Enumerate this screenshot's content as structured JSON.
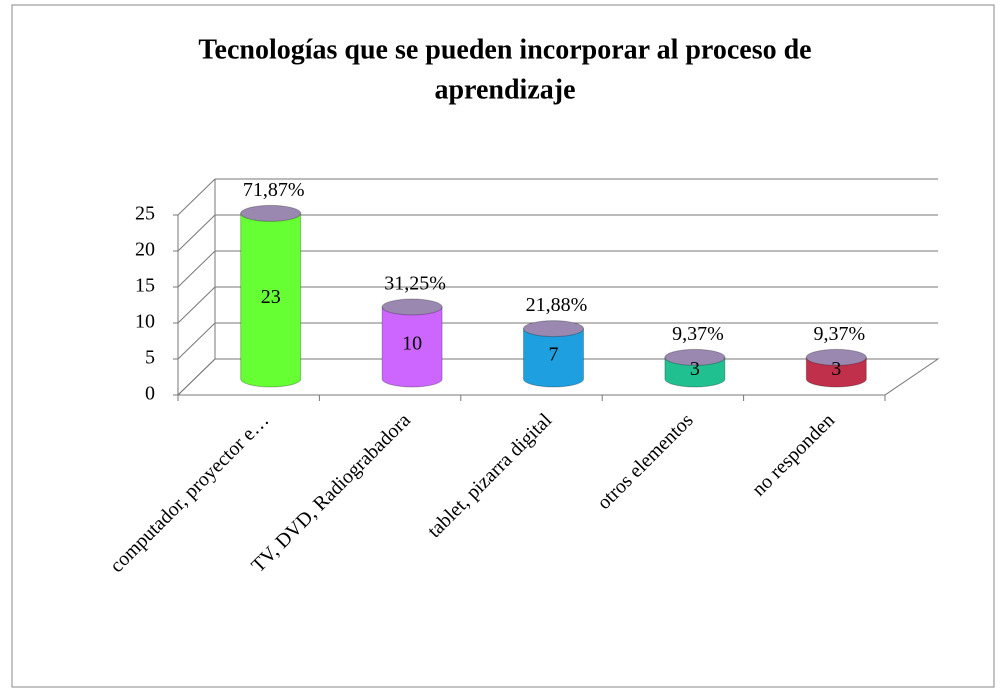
{
  "chart_data": {
    "type": "bar3d",
    "title": [
      "Tecnologías que se pueden incorporar al proceso de",
      "aprendizaje"
    ],
    "categories": [
      "computador, proyector e…",
      "TV, DVD, Radiograbadora",
      "tablet, pizarra digital",
      "otros elementos",
      "no responden"
    ],
    "values": [
      23,
      10,
      7,
      3,
      3
    ],
    "percent_labels": [
      "71,87%",
      "31,25%",
      "21,88%",
      "9,37%",
      "9,37%"
    ],
    "colors": [
      "#66ff33",
      "#cc66ff",
      "#1ea0e0",
      "#20c090",
      "#c0304a"
    ],
    "top_color": "#9a88b0",
    "ylim": [
      0,
      25
    ],
    "yticks": [
      0,
      5,
      10,
      15,
      20,
      25
    ],
    "grid": true
  }
}
